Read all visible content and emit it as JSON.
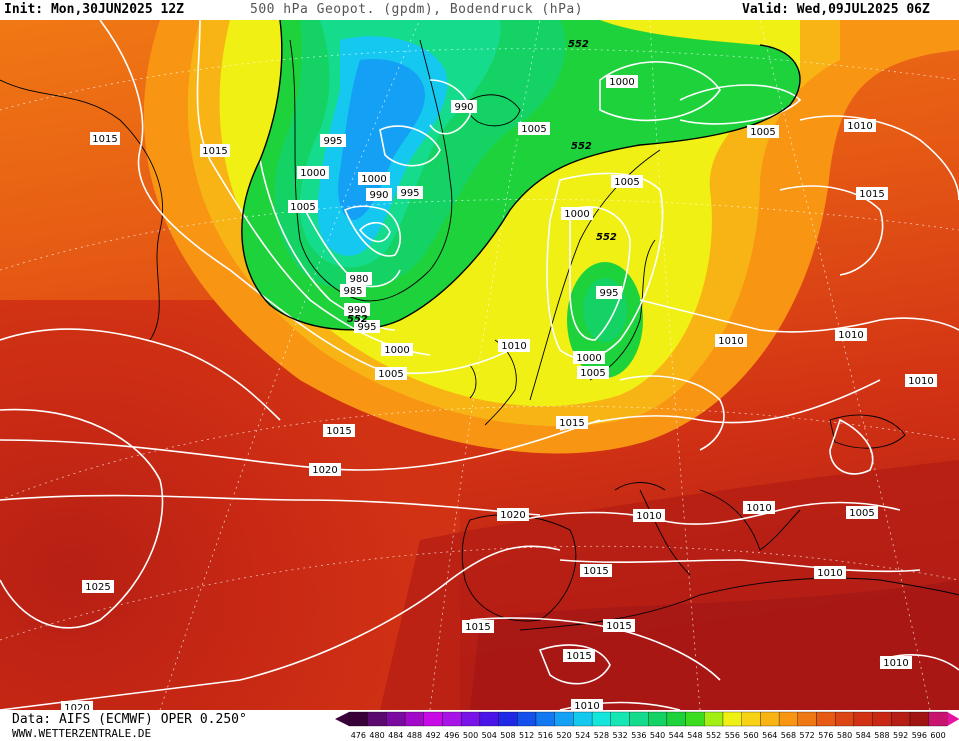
{
  "header": {
    "init": "Init: Mon,30JUN2025 12Z",
    "title": "500 hPa Geopot. (gpdm), Bodendruck (hPa)",
    "valid": "Valid: Wed,09JUL2025 06Z"
  },
  "footer": {
    "data_source": "Data: AIFS (ECMWF) OPER 0.250°",
    "url": "WWW.WETTERZENTRALE.DE"
  },
  "legend": {
    "values": [
      "476",
      "480",
      "484",
      "488",
      "492",
      "496",
      "500",
      "504",
      "508",
      "512",
      "516",
      "520",
      "524",
      "528",
      "532",
      "536",
      "540",
      "544",
      "548",
      "552",
      "556",
      "560",
      "564",
      "568",
      "572",
      "576",
      "580",
      "584",
      "588",
      "592",
      "596",
      "600"
    ],
    "colors": [
      "#3a003a",
      "#5a0a6e",
      "#7a0aa0",
      "#a00ac8",
      "#c80ae6",
      "#a814e8",
      "#7814e8",
      "#4a14e8",
      "#1e28e6",
      "#1450ec",
      "#1478f0",
      "#14a0f4",
      "#14c8f0",
      "#14e6dc",
      "#14e6b4",
      "#14dc8c",
      "#14d264",
      "#1ed23c",
      "#3cdc1e",
      "#a0f014",
      "#f0f014",
      "#f8d214",
      "#f8b414",
      "#f89614",
      "#f07814",
      "#e65a14",
      "#dc4614",
      "#d23214",
      "#c82814",
      "#b41e14",
      "#a01414",
      "#c8146e"
    ]
  },
  "map_labels": {
    "pressure": [
      "1015",
      "1015",
      "1005",
      "995",
      "1000",
      "1000",
      "990",
      "995",
      "990",
      "980",
      "985",
      "990",
      "995",
      "1000",
      "1005",
      "1015",
      "1020",
      "1025",
      "1020",
      "1010",
      "1005",
      "1000",
      "1005",
      "1010",
      "1015",
      "1020",
      "1010",
      "995",
      "1000",
      "1005",
      "1000",
      "1005",
      "1010",
      "1010",
      "1015",
      "1010",
      "1010",
      "1015",
      "1015",
      "1015",
      "1015",
      "1010",
      "1010",
      "1010",
      "1005",
      "1005",
      "1010",
      "1005",
      "1010",
      "1015",
      "1010"
    ],
    "geopotential": [
      "552",
      "552",
      "552",
      "552"
    ]
  }
}
